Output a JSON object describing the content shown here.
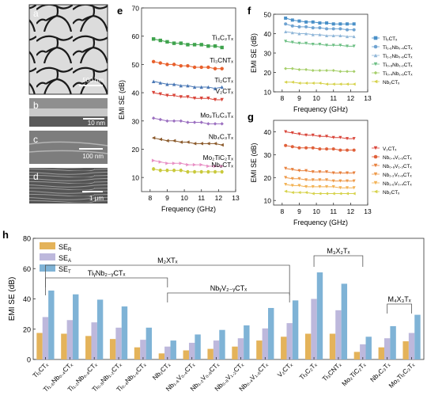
{
  "panel_letters": {
    "a": "a",
    "b": "b",
    "c": "c",
    "d": "d",
    "e": "e",
    "f": "f",
    "g": "g",
    "h": "h"
  },
  "micrographs": {
    "a": {
      "scale_bar": "500 nm",
      "style": "light foam with dark cell walls"
    },
    "b": {
      "scale_bar": "10 nm",
      "style": "thin light film on grey substrate"
    },
    "c": {
      "scale_bar": "100 nm",
      "style": "grey layered"
    },
    "d": {
      "scale_bar": "1 μm",
      "style": "dark grey striated layers"
    }
  },
  "chart_data": [
    {
      "panel": "e",
      "type": "line",
      "xlabel": "Frequency (GHz)",
      "ylabel": "EMI SE (dB)",
      "xlim": [
        7.5,
        13
      ],
      "ylim": [
        5,
        70
      ],
      "xticks": [
        8,
        9,
        10,
        11,
        12,
        13
      ],
      "yticks": [
        10,
        20,
        30,
        40,
        50,
        60,
        70
      ],
      "x": [
        8.2,
        8.6,
        9.0,
        9.4,
        9.8,
        10.2,
        10.6,
        11.0,
        11.4,
        11.8,
        12.2
      ],
      "series": [
        {
          "name": "Ti3C2Tx",
          "label": "Ti₃C₂Tₓ",
          "color": "#3fa34d",
          "marker": "square",
          "values": [
            59,
            58.5,
            58,
            57.5,
            57.5,
            57,
            57,
            57,
            56.5,
            56.5,
            56
          ]
        },
        {
          "name": "Ti3CNTx",
          "label": "Ti₃CNTₓ",
          "color": "#e8602c",
          "marker": "circle",
          "values": [
            51,
            50.5,
            50,
            50,
            49.5,
            49.5,
            49,
            49,
            49,
            48.5,
            48.5
          ]
        },
        {
          "name": "Ti2CTx",
          "label": "Ti₂CTₓ",
          "color": "#4a78b5",
          "marker": "triangle",
          "values": [
            44,
            43.5,
            43,
            43,
            42.5,
            42.5,
            42,
            42,
            42,
            41.5,
            42
          ]
        },
        {
          "name": "V2CTx",
          "label": "V₂CTₓ",
          "color": "#d9453a",
          "marker": "triangle-down",
          "values": [
            40,
            39.5,
            39,
            39,
            38.5,
            38.5,
            38,
            38,
            38,
            37.5,
            37.5
          ]
        },
        {
          "name": "Mo2Ti2C3Tx",
          "label": "Mo₂Ti₂C₃Tₓ",
          "color": "#9b6fc0",
          "marker": "diamond",
          "values": [
            31,
            30.5,
            30,
            30,
            30,
            29.5,
            29.5,
            29.5,
            29,
            29,
            29
          ]
        },
        {
          "name": "Nb4C3Tx",
          "label": "Nb₄C₃Tₓ",
          "color": "#8b5a2b",
          "marker": "triangle-left",
          "values": [
            24,
            23.5,
            23,
            23,
            22.5,
            22.5,
            22,
            22,
            22,
            22,
            21.5
          ]
        },
        {
          "name": "Mo2TiC2Tx",
          "label": "Mo₂TiC₂Tₓ",
          "color": "#e88fc4",
          "marker": "triangle-right",
          "values": [
            16,
            15.5,
            15,
            15,
            15,
            14.5,
            14.5,
            14.5,
            14,
            14,
            14
          ]
        },
        {
          "name": "Nb2CTx",
          "label": "Nb₂CTₓ",
          "color": "#c9c93b",
          "marker": "hexagon",
          "values": [
            13,
            12.5,
            12.5,
            12.5,
            12.5,
            12,
            12,
            12,
            12,
            12,
            12
          ]
        }
      ]
    },
    {
      "panel": "f",
      "type": "line",
      "xlabel": "Frequency (GHz)",
      "ylabel": "EMI SE (dB)",
      "xlim": [
        7.5,
        13
      ],
      "ylim": [
        10,
        50
      ],
      "xticks": [
        8,
        9,
        10,
        11,
        12,
        13
      ],
      "yticks": [
        10,
        20,
        30,
        40,
        50
      ],
      "x": [
        8.2,
        8.6,
        9.0,
        9.4,
        9.8,
        10.2,
        10.6,
        11.0,
        11.4,
        11.8,
        12.2
      ],
      "series": [
        {
          "name": "Ti2CTx",
          "label": "Ti₂CTₓ",
          "color": "#4a90c8",
          "marker": "square",
          "values": [
            48,
            47,
            46.5,
            46,
            46,
            45.5,
            45.5,
            45,
            45,
            45,
            45
          ]
        },
        {
          "name": "Ti1.6Nb0.4CTx",
          "label": "Ti₁.₆Nb₀.₄CTₓ",
          "color": "#6fa3d1",
          "marker": "circle",
          "values": [
            45,
            44,
            43.5,
            43.5,
            43,
            43,
            42.5,
            42.5,
            42.5,
            42,
            42
          ]
        },
        {
          "name": "Ti1.2Nb0.8CTx",
          "label": "Ti₁.₂Nb₀.₈CTₓ",
          "color": "#8fb6d8",
          "marker": "triangle",
          "values": [
            41,
            40.5,
            40,
            40,
            39.5,
            39.5,
            39,
            39,
            39,
            38.5,
            38.5
          ]
        },
        {
          "name": "Ti0.8Nb1.2CTx",
          "label": "Ti₀.₈Nb₁.₂CTₓ",
          "color": "#6dbf84",
          "marker": "triangle-down",
          "values": [
            36,
            35.5,
            35,
            35,
            34.5,
            34.5,
            34,
            34,
            34,
            33.5,
            33.5
          ]
        },
        {
          "name": "Ti0.4Nb1.6CTx",
          "label": "Ti₀.₄Nb₁.₆CTₓ",
          "color": "#a6cf6a",
          "marker": "diamond",
          "values": [
            22,
            22,
            21.5,
            21.5,
            21,
            21,
            21,
            21,
            20.5,
            20.5,
            20.5
          ]
        },
        {
          "name": "Nb2CTx",
          "label": "Nb₂CTₓ",
          "color": "#d6d24a",
          "marker": "triangle-left",
          "values": [
            15,
            15,
            14.5,
            14.5,
            14.5,
            14.5,
            14,
            14,
            14,
            14,
            14
          ]
        }
      ]
    },
    {
      "panel": "g",
      "type": "line",
      "xlabel": "Frequency (GHz)",
      "ylabel": "EMI SE (dB)",
      "xlim": [
        7.5,
        13
      ],
      "ylim": [
        8,
        45
      ],
      "xticks": [
        8,
        9,
        10,
        11,
        12,
        13
      ],
      "yticks": [
        10,
        20,
        30,
        40
      ],
      "x": [
        8.2,
        8.6,
        9.0,
        9.4,
        9.8,
        10.2,
        10.6,
        11.0,
        11.4,
        11.8,
        12.2
      ],
      "series": [
        {
          "name": "V2CTx",
          "label": "V₂CTₓ",
          "color": "#d9453a",
          "marker": "triangle-down",
          "values": [
            40,
            39.5,
            39,
            38.5,
            38.5,
            38,
            38,
            37.5,
            37.5,
            37,
            37
          ]
        },
        {
          "name": "Nb0.4V1.6CTx",
          "label": "Nb₀.₄V₁.₆CTₓ",
          "color": "#e0603a",
          "marker": "circle",
          "values": [
            34,
            33.5,
            33,
            33,
            33,
            32.5,
            32.5,
            32.5,
            32,
            32,
            32
          ]
        },
        {
          "name": "Nb0.8V1.2CTx",
          "label": "Nb₀.₈V₁.₂CTₓ",
          "color": "#e8803c",
          "marker": "triangle-down",
          "values": [
            24,
            23.5,
            23,
            23,
            22.5,
            22.5,
            22.5,
            22,
            22,
            22,
            22
          ]
        },
        {
          "name": "Nb1.2V0.8CTx",
          "label": "Nb₁.₂V₀.₈CTₓ",
          "color": "#ee9a4a",
          "marker": "triangle-down",
          "values": [
            20,
            19.5,
            19.5,
            19,
            19,
            19,
            19,
            18.5,
            18.5,
            18.5,
            18.5
          ]
        },
        {
          "name": "Nb1.6V0.4CTx",
          "label": "Nb₁.₆V₀.₄CTₓ",
          "color": "#f2b254",
          "marker": "triangle-down",
          "values": [
            17,
            16.5,
            16.5,
            16,
            16,
            16,
            16,
            16,
            15.5,
            15.5,
            15.5
          ]
        },
        {
          "name": "Nb2CTx",
          "label": "Nb₂CTₓ",
          "color": "#d6d24a",
          "marker": "triangle-left",
          "values": [
            14,
            13.5,
            13.5,
            13.5,
            13,
            13,
            13,
            13,
            13,
            13,
            13
          ]
        }
      ]
    },
    {
      "panel": "h",
      "type": "bar",
      "ylabel": "EMI SE (dB)",
      "ylim": [
        0,
        80
      ],
      "yticks": [
        0,
        20,
        40,
        60,
        80
      ],
      "legend": "top-left",
      "series_names": [
        "SE_R",
        "SE_A",
        "SE_T"
      ],
      "legend_labels": [
        {
          "base": "SE",
          "sub": "R"
        },
        {
          "base": "SE",
          "sub": "A"
        },
        {
          "base": "SE",
          "sub": "T"
        }
      ],
      "colors": [
        "#e4b35a",
        "#bdb8dc",
        "#7fb3d6"
      ],
      "categories": [
        "Ti2CTx",
        "Ti1.6Nb0.4CTx",
        "Ti1.2Nb0.8CTx",
        "Ti0.8Nb1.2CTx",
        "Ti0.4Nb1.6CTx",
        "Nb2CTx",
        "Nb1.6V0.4CTx",
        "Nb1.2V0.8CTx",
        "Nb0.8V1.2CTx",
        "Nb0.4V1.6CTx",
        "V2CTx",
        "Ti3C2Tx",
        "Ti3CNTx",
        "Mo2TiC2Tx",
        "Nb4C3Tx",
        "Mo2Ti2C3Tx"
      ],
      "category_labels": [
        "Ti₂CTₓ",
        "Ti₁.₆Nb₀.₄CTₓ",
        "Ti₁.₂Nb₀.₈CTₓ",
        "Ti₀.₈Nb₁.₂CTₓ",
        "Ti₀.₄Nb₁.₆CTₓ",
        "Nb₂CTₓ",
        "Nb₁.₆V₀.₄CTₓ",
        "Nb₁.₂V₀.₈CTₓ",
        "Nb₀.₈V₁.₂CTₓ",
        "Nb₀.₄V₁.₆CTₓ",
        "V₂CTₓ",
        "Ti₃C₂Tₓ",
        "Ti₃CNTₓ",
        "Mo₂TiC₂Tₓ",
        "Nb₄C₃Tₓ",
        "Mo₂Ti₂C₃Tₓ"
      ],
      "series": [
        {
          "name": "SE_R",
          "values": [
            17.5,
            17,
            15.5,
            13.5,
            8,
            4,
            6,
            7,
            8.5,
            12.5,
            15,
            17,
            17,
            5,
            8,
            12
          ]
        },
        {
          "name": "SE_A",
          "values": [
            28,
            26,
            24.5,
            21,
            13,
            8.5,
            11,
            12.5,
            14,
            20.5,
            24,
            40,
            32.5,
            10,
            14,
            17.5
          ]
        },
        {
          "name": "SE_T",
          "values": [
            45.5,
            43,
            39.5,
            35,
            21,
            12.5,
            16.5,
            19.5,
            22.5,
            34,
            39,
            57.5,
            50,
            15,
            22,
            29.5
          ]
        }
      ],
      "group_brackets": [
        {
          "label": "M₂XTₓ",
          "from": 0,
          "to": 10
        },
        {
          "label": "TiᵧNb₂₋ᵧCTₓ",
          "from": 0,
          "to": 5
        },
        {
          "label": "NbᵧV₂₋ᵧCTₓ",
          "from": 5,
          "to": 10
        },
        {
          "label": "M₃X₂Tₓ",
          "from": 11,
          "to": 13
        },
        {
          "label": "M₄X₃Tₓ",
          "from": 14,
          "to": 15
        }
      ]
    }
  ]
}
